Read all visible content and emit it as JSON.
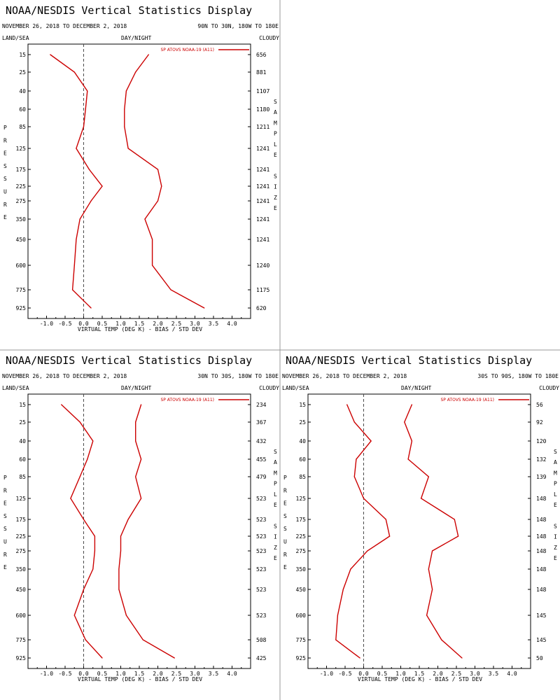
{
  "panels": [
    {
      "title": "NOAA/NESDIS Vertical Statistics Display",
      "dates": "NOVEMBER 26, 2018 TO DECEMBER 2, 2018",
      "region": "90N TO 30N, 180W TO 180E",
      "land_sea": "LAND/SEA",
      "day_night": "DAY/NIGHT",
      "cloudy": "CLOUDY",
      "left_label": "PRESSURE",
      "right_label": "SAMPLE SIZE",
      "legend": "SP ATOVS NOAA-19 (A11)",
      "xlabel": "VIRTUAL TEMP (DEG K) - BIAS / STD DEV",
      "sample_sizes": [
        "656",
        "881",
        "1107",
        "1180",
        "1211",
        "1241",
        "1241",
        "1241",
        "1241",
        "1241",
        "1241",
        "1240",
        "1175",
        "620"
      ]
    },
    {
      "title": "NOAA/NESDIS Vertical Statistics Display",
      "dates": "NOVEMBER 26, 2018 TO DECEMBER 2, 2018",
      "region": "30N TO 30S, 180W TO 180E",
      "land_sea": "LAND/SEA",
      "day_night": "DAY/NIGHT",
      "cloudy": "CLOUDY",
      "left_label": "PRESSURE",
      "right_label": "SAMPLE SIZE",
      "legend": "SP ATOVS NOAA-19 (A11)",
      "xlabel": "VIRTUAL TEMP (DEG K) - BIAS / STD DEV",
      "sample_sizes": [
        "234",
        "367",
        "432",
        "455",
        "479",
        "523",
        "523",
        "523",
        "523",
        "523",
        "523",
        "523",
        "508",
        "425"
      ]
    },
    {
      "title": "NOAA/NESDIS Vertical Statistics Display",
      "dates": "NOVEMBER 26, 2018 TO DECEMBER 2, 2018",
      "region": "30S TO 90S, 180W TO 180E",
      "land_sea": "LAND/SEA",
      "day_night": "DAY/NIGHT",
      "cloudy": "CLOUDY",
      "left_label": "PRESSURE",
      "right_label": "SAMPLE SIZE",
      "legend": "SP ATOVS NOAA-19 (A11)",
      "xlabel": "VIRTUAL TEMP (DEG K) - BIAS / STD DEV",
      "sample_sizes": [
        "56",
        "92",
        "120",
        "132",
        "139",
        "148",
        "148",
        "148",
        "148",
        "148",
        "148",
        "145",
        "145",
        "50"
      ]
    }
  ],
  "chart_data": [
    {
      "type": "line",
      "title": "NOAA/NESDIS Vertical Statistics Display",
      "xlabel": "VIRTUAL TEMP (DEG K) - BIAS / STD DEV",
      "ylabel": "PRESSURE",
      "xlim": [
        -1.5,
        4.5
      ],
      "x_ticks": [
        "-1.0",
        "-0.5",
        "0.0",
        "0.5",
        "1.0",
        "1.5",
        "2.0",
        "2.5",
        "3.0",
        "3.5",
        "4.0"
      ],
      "y_ticks": [
        "15",
        "25",
        "40",
        "60",
        "85",
        "125",
        "175",
        "225",
        "275",
        "350",
        "450",
        "600",
        "775",
        "925"
      ],
      "series": [
        {
          "name": "SP ATOVS NOAA-19 (A11)",
          "role": "bias",
          "values": [
            -0.9,
            -0.25,
            0.1,
            0.05,
            0.0,
            -0.2,
            0.15,
            0.5,
            0.2,
            -0.1,
            -0.2,
            -0.25,
            -0.3,
            0.2
          ]
        },
        {
          "role": "std_dev",
          "values": [
            1.75,
            1.4,
            1.15,
            1.1,
            1.1,
            1.2,
            2.0,
            2.1,
            2.0,
            1.65,
            1.85,
            1.85,
            2.35,
            3.25
          ]
        }
      ]
    },
    {
      "type": "line",
      "title": "NOAA/NESDIS Vertical Statistics Display",
      "xlabel": "VIRTUAL TEMP (DEG K) - BIAS / STD DEV",
      "ylabel": "PRESSURE",
      "xlim": [
        -1.5,
        4.5
      ],
      "x_ticks": [
        "-1.0",
        "-0.5",
        "0.0",
        "0.5",
        "1.0",
        "1.5",
        "2.0",
        "2.5",
        "3.0",
        "3.5",
        "4.0"
      ],
      "y_ticks": [
        "15",
        "25",
        "40",
        "60",
        "85",
        "125",
        "175",
        "225",
        "275",
        "350",
        "450",
        "600",
        "775",
        "925"
      ],
      "series": [
        {
          "name": "SP ATOVS NOAA-19 (A11)",
          "role": "bias",
          "values": [
            -0.6,
            -0.1,
            0.25,
            0.1,
            -0.1,
            -0.35,
            0.0,
            0.3,
            0.3,
            0.25,
            0.0,
            -0.25,
            0.05,
            0.5
          ]
        },
        {
          "role": "std_dev",
          "values": [
            1.55,
            1.4,
            1.4,
            1.55,
            1.4,
            1.55,
            1.2,
            1.0,
            1.0,
            0.95,
            0.95,
            1.15,
            1.6,
            2.45
          ]
        }
      ]
    },
    {
      "type": "line",
      "title": "NOAA/NESDIS Vertical Statistics Display",
      "xlabel": "VIRTUAL TEMP (DEG K) - BIAS / STD DEV",
      "ylabel": "PRESSURE",
      "xlim": [
        -1.5,
        4.5
      ],
      "x_ticks": [
        "-1.0",
        "-0.5",
        "0.0",
        "0.5",
        "1.0",
        "1.5",
        "2.0",
        "2.5",
        "3.0",
        "3.5",
        "4.0"
      ],
      "y_ticks": [
        "15",
        "25",
        "40",
        "60",
        "85",
        "125",
        "175",
        "225",
        "275",
        "350",
        "450",
        "600",
        "775",
        "925"
      ],
      "series": [
        {
          "name": "SP ATOVS NOAA-19 (A11)",
          "role": "bias",
          "values": [
            -0.45,
            -0.25,
            0.2,
            -0.2,
            -0.25,
            0.0,
            0.6,
            0.7,
            0.1,
            -0.35,
            -0.55,
            -0.7,
            -0.75,
            -0.1
          ]
        },
        {
          "role": "std_dev",
          "values": [
            1.3,
            1.1,
            1.3,
            1.2,
            1.75,
            1.55,
            2.45,
            2.55,
            1.85,
            1.75,
            1.85,
            1.7,
            2.1,
            2.65
          ]
        }
      ]
    }
  ],
  "colors": {
    "line": "#cc0000",
    "zero_line": "#4a4a4a",
    "divider": "#9a9a9a"
  }
}
